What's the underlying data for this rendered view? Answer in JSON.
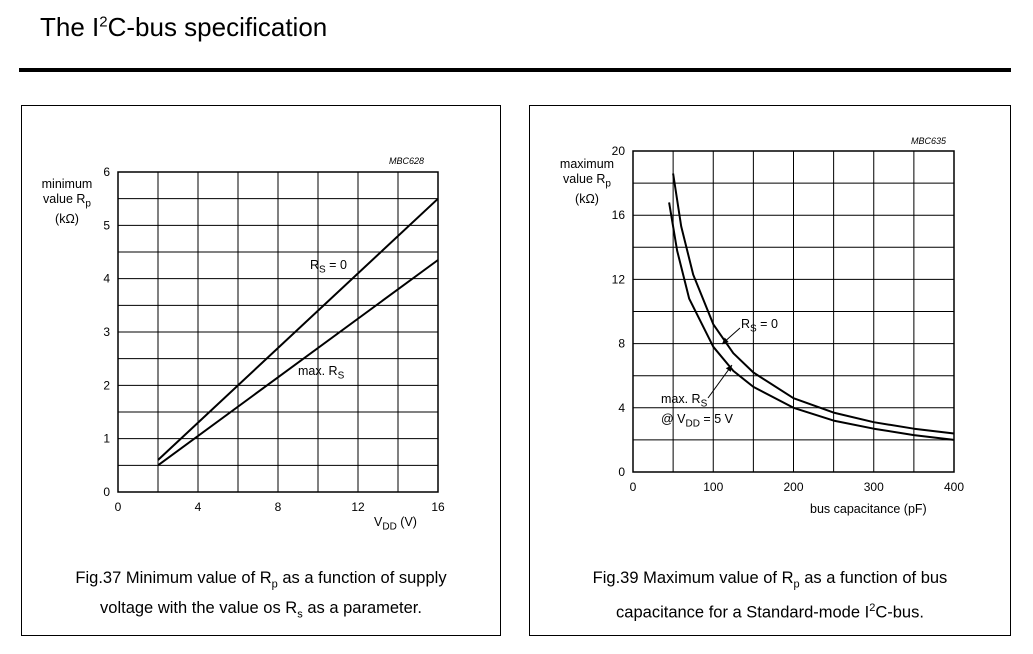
{
  "header": {
    "title_pre": "The I",
    "title_sup": "2",
    "title_post": "C-bus specification"
  },
  "chart_data": [
    {
      "type": "line",
      "code": "MBC628",
      "ylabel": {
        "line1": "minimum",
        "line2": "value R",
        "line2_sub": "p",
        "line3": "(kΩ)"
      },
      "xlabel": {
        "main": "V",
        "sub": "DD",
        "unit": "(V)"
      },
      "xlim": [
        0,
        16
      ],
      "ylim": [
        0,
        6
      ],
      "xticks": [
        0,
        4,
        8,
        12,
        16
      ],
      "yticks": [
        0,
        1,
        2,
        3,
        4,
        5,
        6
      ],
      "grid_x_step": 2,
      "grid_y_step": 0.5,
      "series": [
        {
          "x": [
            2,
            16
          ],
          "y": [
            0.6,
            5.5
          ]
        },
        {
          "x": [
            2,
            16
          ],
          "y": [
            0.5,
            4.35
          ]
        }
      ],
      "annotations": [
        {
          "main": "R",
          "sub": "S",
          "rest": " = 0"
        },
        {
          "main": "max. R",
          "sub": "S",
          "rest": ""
        }
      ],
      "caption": {
        "line1_a": "Fig.37  Minimum value of R",
        "line1_sub": "p",
        "line1_b": " as a function of supply",
        "line2_a": "voltage with the value os R",
        "line2_sub": "s",
        "line2_b": " as a parameter."
      }
    },
    {
      "type": "line",
      "code": "MBC635",
      "ylabel": {
        "line1": "maximum",
        "line2": "value R",
        "line2_sub": "p",
        "line3": "(kΩ)"
      },
      "xlabel": {
        "main": "bus capacitance (pF)"
      },
      "xlim": [
        0,
        400
      ],
      "ylim": [
        0,
        20
      ],
      "xticks": [
        0,
        100,
        200,
        300,
        400
      ],
      "yticks": [
        0,
        4,
        8,
        12,
        16,
        20
      ],
      "grid_x_step": 50,
      "grid_y_step": 2,
      "series": [
        {
          "x": [
            50,
            60,
            75,
            100,
            125,
            150,
            200,
            250,
            300,
            350,
            400
          ],
          "y": [
            18.6,
            15.3,
            12.3,
            9.2,
            7.4,
            6.2,
            4.6,
            3.7,
            3.1,
            2.7,
            2.4
          ]
        },
        {
          "x": [
            45,
            55,
            70,
            100,
            125,
            150,
            200,
            250,
            300,
            350,
            400
          ],
          "y": [
            16.8,
            13.8,
            10.8,
            7.8,
            6.3,
            5.3,
            4.0,
            3.2,
            2.7,
            2.3,
            2.0
          ]
        }
      ],
      "annotations": [
        {
          "main": "R",
          "sub": "S",
          "rest": " = 0"
        },
        {
          "main": "max. R",
          "sub": "S",
          "rest": ""
        },
        {
          "main": "@ V",
          "sub": "DD",
          "rest": " = 5 V"
        }
      ],
      "caption": {
        "line1_a": "Fig.39  Maximum value of R",
        "line1_sub": "p",
        "line1_b": " as a function of bus",
        "line2_a": "capacitance for a Standard-mode I",
        "line2_sup": "2",
        "line2_b": "C-bus."
      }
    }
  ]
}
